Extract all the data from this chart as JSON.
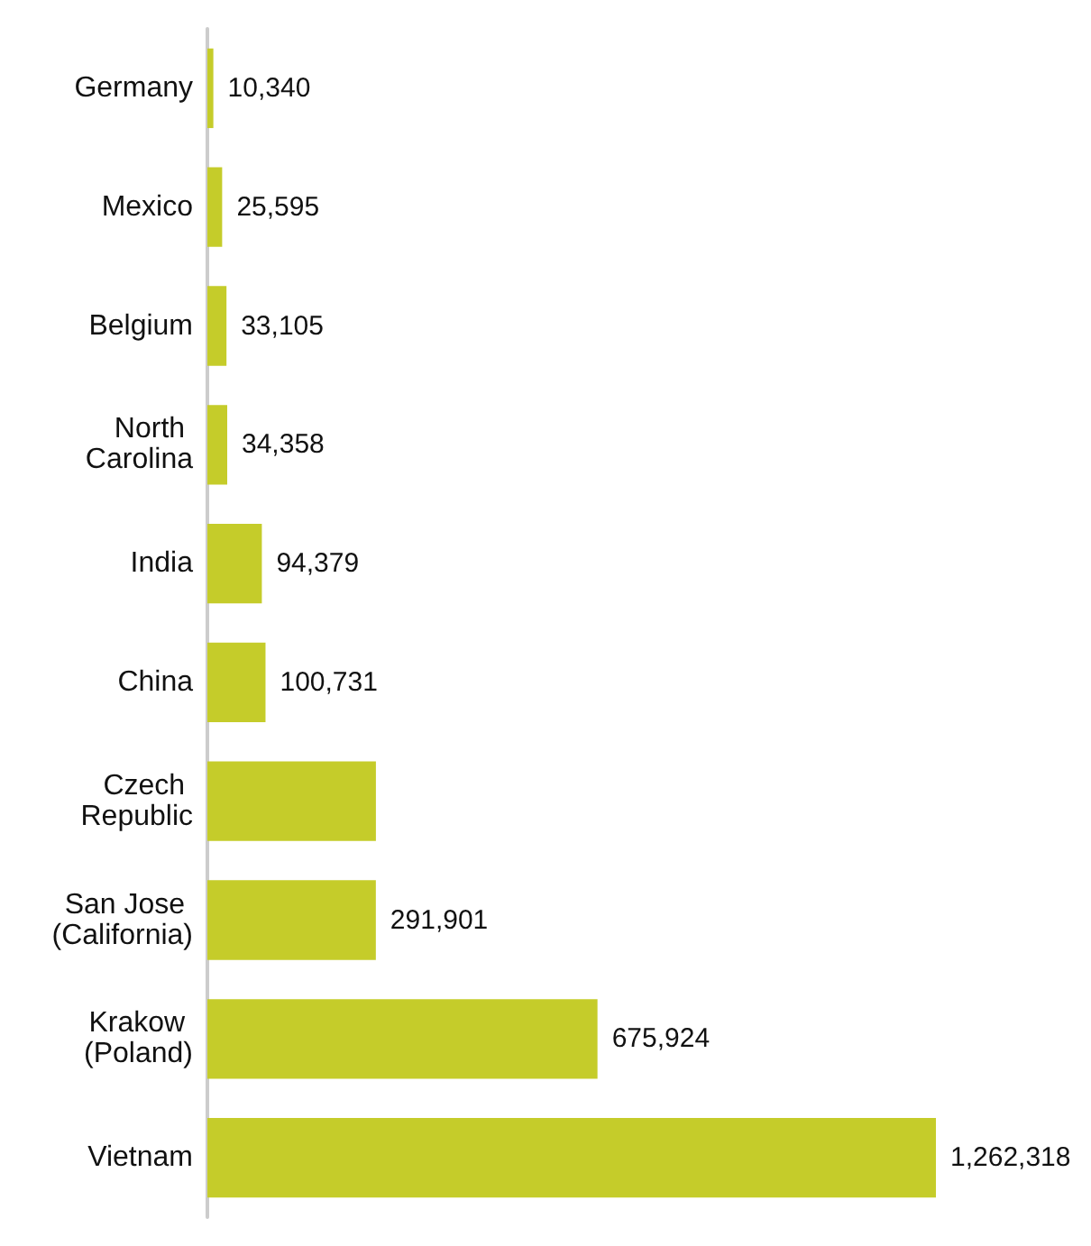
{
  "chart_data": {
    "type": "bar",
    "orientation": "horizontal",
    "categories": [
      "Germany",
      "Mexico",
      "Belgium",
      "North Carolina",
      "India",
      "China",
      "Czech Republic",
      "San Jose (California)",
      "Krakow (Poland)",
      "Vietnam"
    ],
    "values": [
      10340,
      25595,
      33105,
      34358,
      94379,
      100731,
      292000,
      291901,
      675924,
      1262318
    ],
    "value_labels": [
      "10,340",
      "25,595",
      "33,105",
      "34,358",
      "94,379",
      "100,731",
      null,
      "291,901",
      "675,924",
      "1,262,318"
    ],
    "color": "#c5cc2a"
  }
}
